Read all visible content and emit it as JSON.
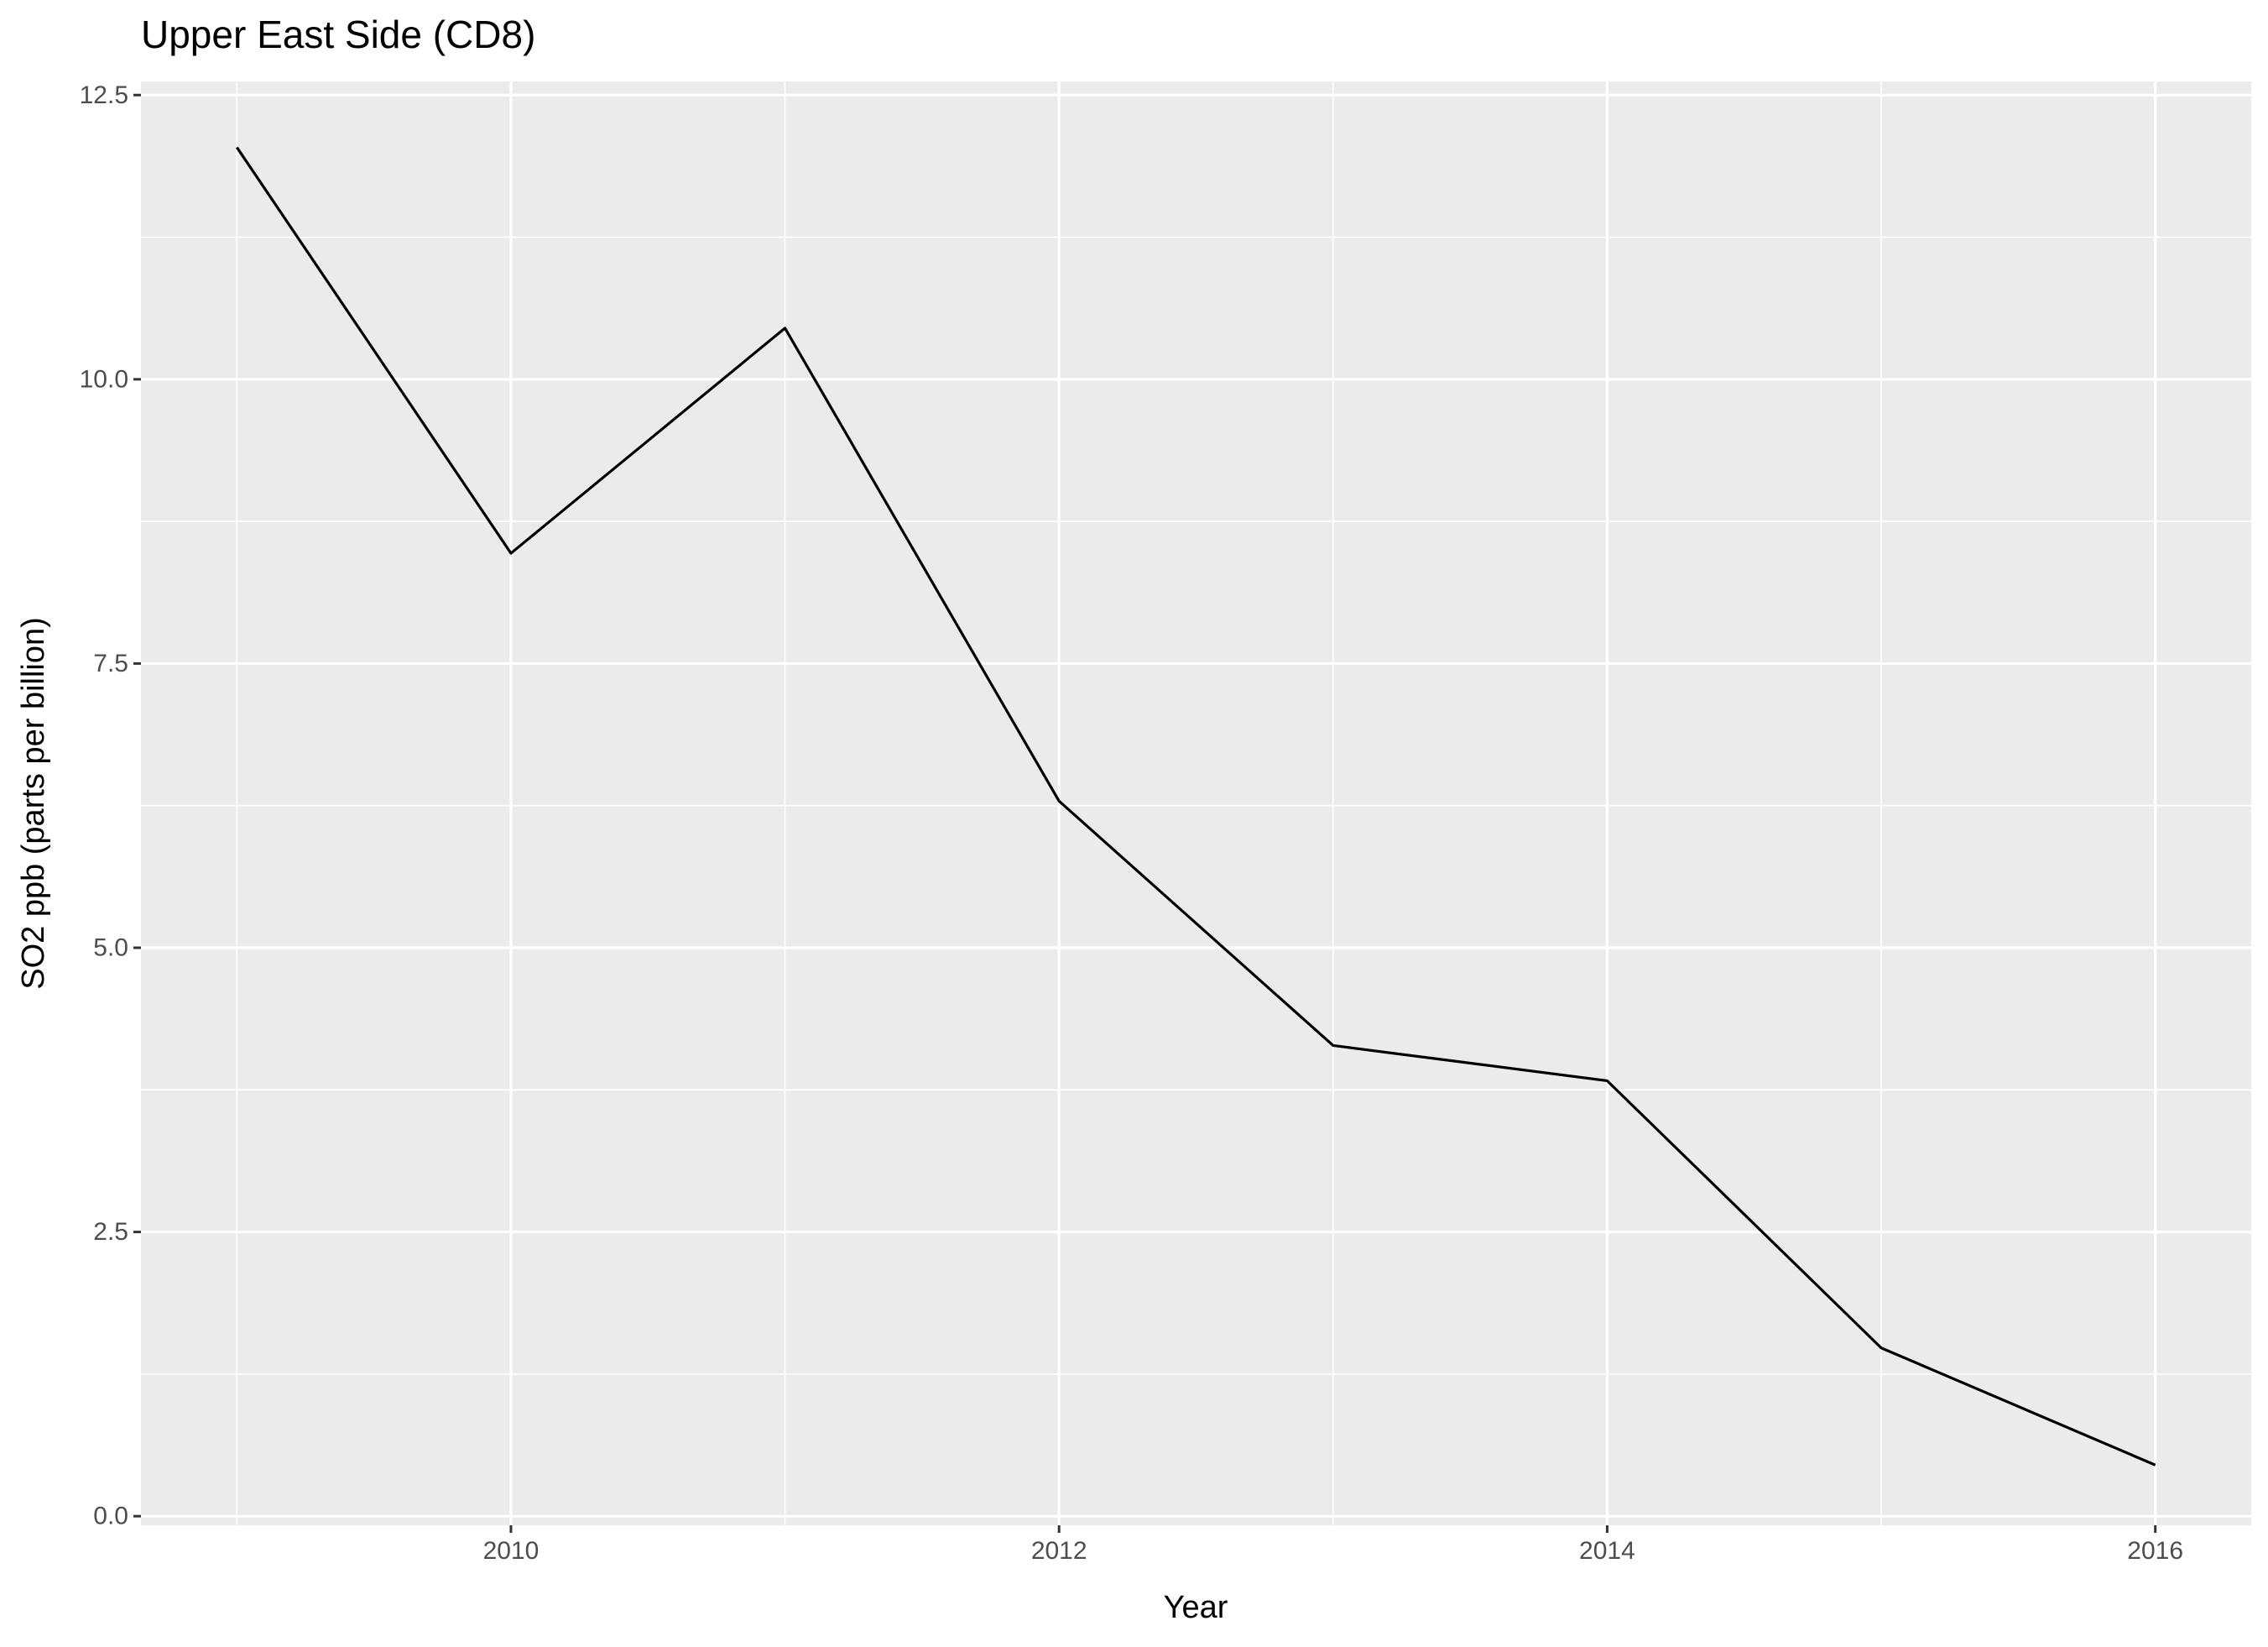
{
  "chart_data": {
    "type": "line",
    "title": "Upper East Side (CD8)",
    "xlabel": "Year",
    "ylabel": "SO2 ppb (parts per billion)",
    "x": [
      2009,
      2010,
      2011,
      2012,
      2013,
      2014,
      2015,
      2016
    ],
    "series": [
      {
        "values": [
          12.04,
          8.47,
          10.45,
          6.29,
          4.14,
          3.83,
          1.48,
          0.45
        ]
      }
    ],
    "xlim": [
      2008.65,
      2016.35
    ],
    "ylim": [
      -0.08,
      12.62
    ],
    "x_ticks": [
      2010,
      2012,
      2014,
      2016
    ],
    "x_tick_labels": [
      "2010",
      "2012",
      "2014",
      "2016"
    ],
    "x_minor_ticks": [
      2009,
      2011,
      2013,
      2015
    ],
    "y_ticks": [
      0,
      2.5,
      5,
      7.5,
      10,
      12.5
    ],
    "y_tick_labels": [
      "0.0",
      "2.5",
      "5.0",
      "7.5",
      "10.0",
      "12.5"
    ],
    "y_minor_ticks": [
      1.25,
      3.75,
      6.25,
      8.75,
      11.25
    ],
    "grid": true,
    "legend": "none",
    "colors": {
      "panel_background": "#ebebeb",
      "grid_line": "#ffffff",
      "line": "#000000",
      "tick_mark": "#333333",
      "tick_label": "#4d4d4d"
    }
  }
}
